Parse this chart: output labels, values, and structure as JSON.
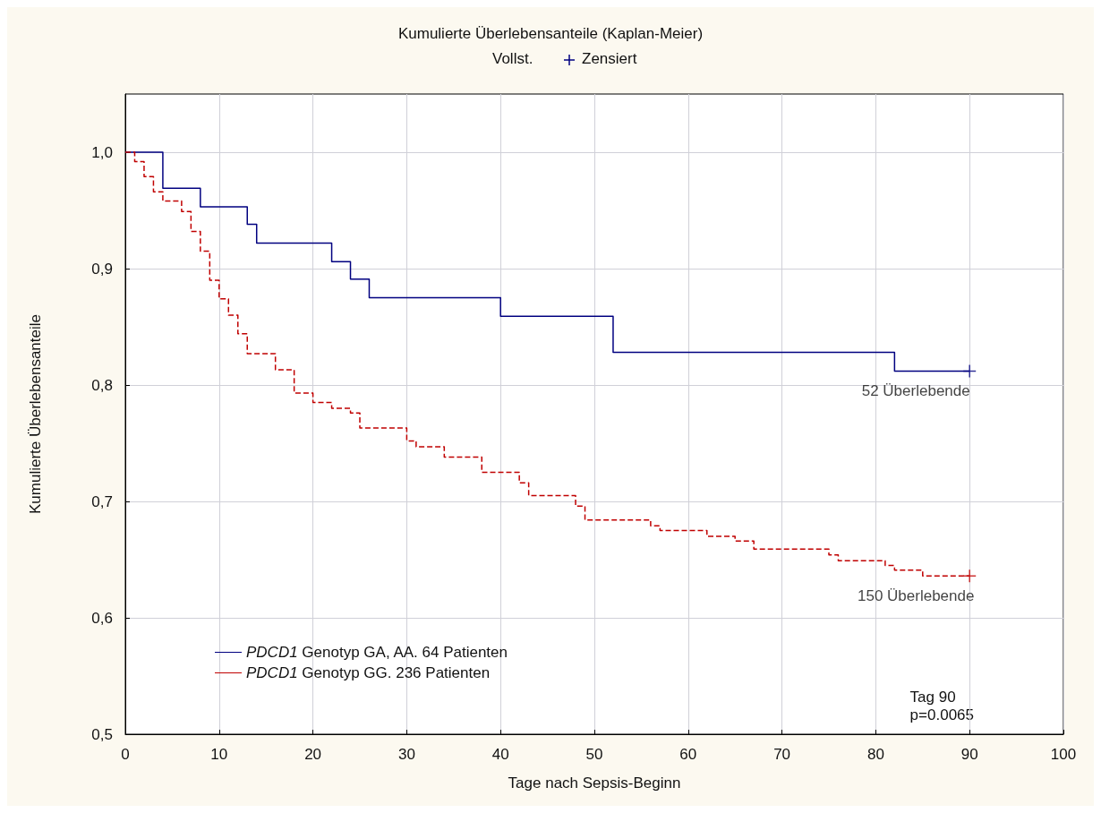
{
  "chart_data": {
    "type": "step",
    "title": "Kumulierte Überlebensanteile (Kaplan-Meier)",
    "xlabel": "Tage nach Sepsis-Beginn",
    "ylabel": "Kumulierte Überlebensanteile",
    "xlim": [
      0,
      100
    ],
    "xticks": [
      0,
      10,
      20,
      30,
      40,
      50,
      60,
      70,
      80,
      90,
      100
    ],
    "ylim": [
      0.5,
      1.05
    ],
    "yticks": [
      {
        "value": 0.5,
        "label": "0,5"
      },
      {
        "value": 0.6,
        "label": "0,6"
      },
      {
        "value": 0.7,
        "label": "0,7"
      },
      {
        "value": 0.8,
        "label": "0,8"
      },
      {
        "value": 0.9,
        "label": "0,9"
      },
      {
        "value": 1.0,
        "label": "1,0"
      }
    ],
    "grid": true,
    "legend": "bottom left",
    "marker": "none",
    "series": [
      {
        "name": "PDCD1 Genotyp GA, AA. 64 Patienten",
        "color": "#000080",
        "line_style": "solid",
        "x": [
          0,
          4,
          8,
          13,
          14,
          22,
          24,
          26,
          40,
          52,
          82,
          90
        ],
        "values": [
          1.0,
          0.969,
          0.953,
          0.938,
          0.922,
          0.906,
          0.891,
          0.875,
          0.859,
          0.828,
          0.812,
          0.812
        ]
      },
      {
        "name": "PDCD1 Genotyp GG. 236 Patienten",
        "color": "#c00000",
        "line_style": "dashed",
        "x": [
          0,
          1,
          2,
          3,
          4,
          6,
          7,
          8,
          9,
          10,
          11,
          12,
          13,
          16,
          18,
          20,
          22,
          24,
          25,
          30,
          31,
          34,
          38,
          42,
          43,
          48,
          49,
          56,
          57,
          62,
          65,
          67,
          75,
          76,
          81,
          82,
          85,
          90
        ],
        "values": [
          1.0,
          0.992,
          0.979,
          0.966,
          0.958,
          0.949,
          0.932,
          0.915,
          0.89,
          0.874,
          0.86,
          0.844,
          0.827,
          0.813,
          0.793,
          0.785,
          0.78,
          0.776,
          0.763,
          0.752,
          0.747,
          0.738,
          0.725,
          0.716,
          0.705,
          0.696,
          0.684,
          0.679,
          0.675,
          0.67,
          0.666,
          0.659,
          0.654,
          0.649,
          0.645,
          0.641,
          0.636,
          0.636
        ]
      },
      {
        "type": "scatter",
        "marker": "cross",
        "color": "#000080",
        "colors": [
          "#000080",
          "#c00000"
        ],
        "x": [
          90,
          90
        ],
        "values": [
          0.812,
          0.636
        ]
      }
    ],
    "annotations": [
      "Vollst.",
      "Zensiert",
      {
        "text": "52 Überlebende",
        "x": 90,
        "y": 0.812
      },
      {
        "text": "150 Überlebende",
        "x": 90,
        "y": 0.636
      },
      "Tag 90\np=0.0065"
    ]
  }
}
